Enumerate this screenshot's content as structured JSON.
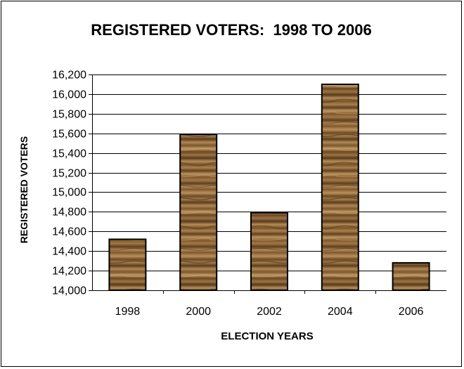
{
  "chart_data": {
    "type": "bar",
    "title": "REGISTERED VOTERS:  1998 TO 2006",
    "xlabel": "ELECTION YEARS",
    "ylabel": "REGISTERED VOTERS",
    "categories": [
      "1998",
      "2000",
      "2002",
      "2004",
      "2006"
    ],
    "values": [
      14520,
      15590,
      14790,
      16100,
      14280
    ],
    "ylim": [
      14000,
      16200
    ],
    "yticks": [
      14000,
      14200,
      14400,
      14600,
      14800,
      15000,
      15200,
      15400,
      15600,
      15800,
      16000,
      16200
    ],
    "ytick_labels": [
      "14,000",
      "14,200",
      "14,400",
      "14,600",
      "14,800",
      "15,000",
      "15,200",
      "15,400",
      "15,600",
      "15,800",
      "16,000",
      "16,200"
    ],
    "grid": true,
    "legend": "none",
    "bar_fill": "wood-texture",
    "colors": {
      "wood_dark": "#5c3d1c",
      "wood_mid": "#8a6232",
      "wood_light": "#b89160"
    }
  }
}
